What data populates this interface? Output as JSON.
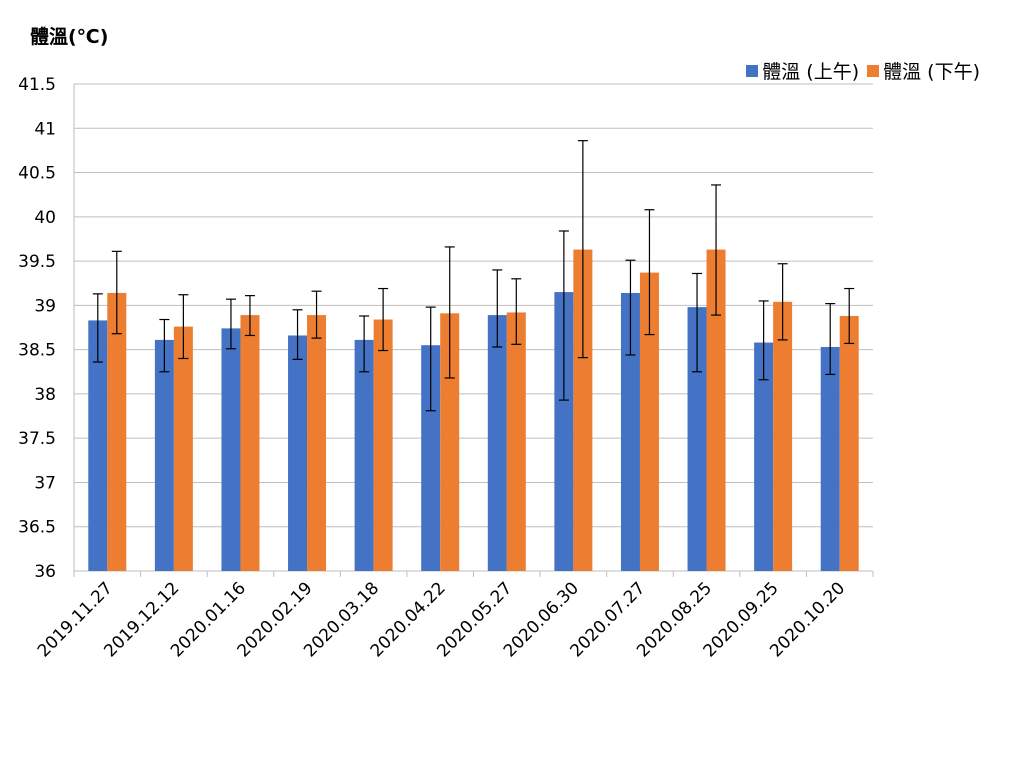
{
  "chart_data": {
    "type": "bar",
    "ylabel": "體溫(℃)",
    "xlabel": "",
    "title": "",
    "ylim": [
      36,
      41.5
    ],
    "ytick_step": 0.5,
    "yticks": [
      "36",
      "36.5",
      "37",
      "37.5",
      "38",
      "38.5",
      "39",
      "39.5",
      "40",
      "40.5",
      "41",
      "41.5"
    ],
    "grid": true,
    "legend_position": "top-right",
    "categories": [
      "2019.11.27",
      "2019.12.12",
      "2020.01.16",
      "2020.02.19",
      "2020.03.18",
      "2020.04.22",
      "2020.05.27",
      "2020.06.30",
      "2020.07.27",
      "2020.08.25",
      "2020.09.25",
      "2020.10.20"
    ],
    "series": [
      {
        "name": "體溫 (上午)",
        "color": "#4472C4",
        "values": [
          38.83,
          38.61,
          38.74,
          38.66,
          38.61,
          38.55,
          38.89,
          39.15,
          39.14,
          38.98,
          38.58,
          38.53
        ],
        "error_low": [
          38.36,
          38.25,
          38.51,
          38.39,
          38.25,
          37.81,
          38.53,
          37.93,
          38.44,
          38.25,
          38.16,
          38.22
        ],
        "error_high": [
          39.13,
          38.84,
          39.07,
          38.95,
          38.88,
          38.98,
          39.4,
          39.84,
          39.51,
          39.36,
          39.05,
          39.02
        ]
      },
      {
        "name": "體溫 (下午)",
        "color": "#ED7D31",
        "values": [
          39.14,
          38.76,
          38.89,
          38.89,
          38.84,
          38.91,
          38.92,
          39.63,
          39.37,
          39.63,
          39.04,
          38.88
        ],
        "error_low": [
          38.68,
          38.4,
          38.66,
          38.63,
          38.49,
          38.18,
          38.56,
          38.41,
          38.67,
          38.89,
          38.61,
          38.57
        ],
        "error_high": [
          39.61,
          39.12,
          39.11,
          39.16,
          39.19,
          39.66,
          39.3,
          40.86,
          40.08,
          40.36,
          39.47,
          39.19
        ]
      }
    ]
  }
}
